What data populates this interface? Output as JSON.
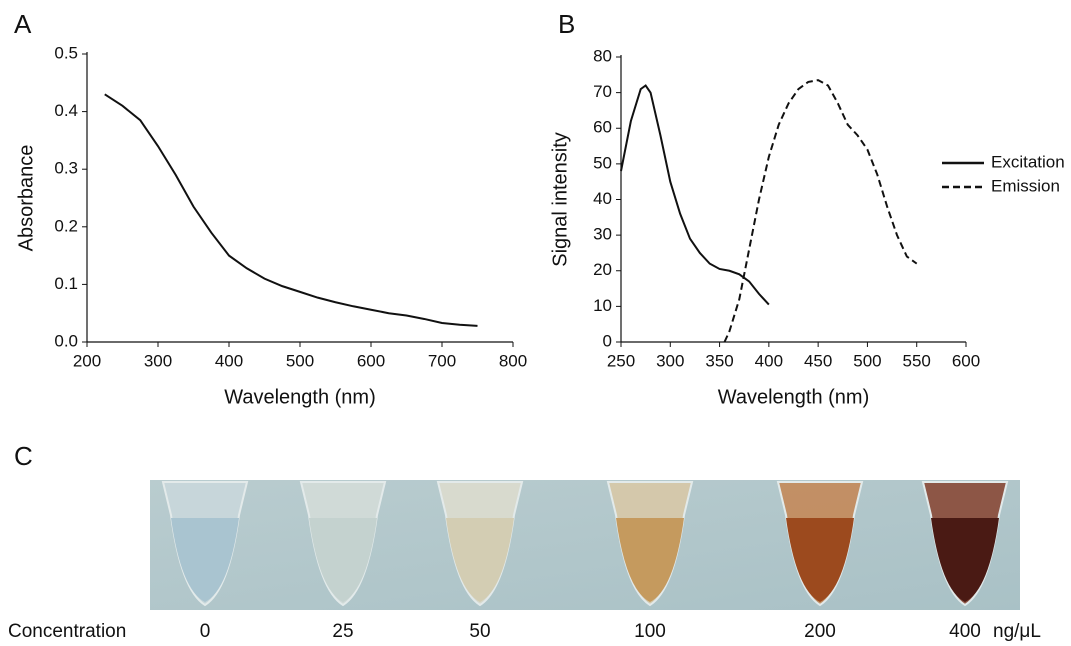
{
  "chart_data": [
    {
      "type": "line",
      "panel_label": "A",
      "xlabel": "Wavelength (nm)",
      "ylabel": "Absorbance",
      "color": "#111111",
      "x": [
        225,
        250,
        275,
        300,
        325,
        350,
        375,
        400,
        425,
        450,
        475,
        500,
        525,
        550,
        575,
        600,
        625,
        650,
        675,
        700,
        725,
        750
      ],
      "values": [
        0.43,
        0.41,
        0.385,
        0.34,
        0.29,
        0.235,
        0.19,
        0.15,
        0.128,
        0.11,
        0.097,
        0.087,
        0.077,
        0.069,
        0.062,
        0.056,
        0.05,
        0.046,
        0.04,
        0.033,
        0.03,
        0.028
      ],
      "xlim": [
        200,
        800
      ],
      "xticks": [
        200,
        300,
        400,
        500,
        600,
        700,
        800
      ],
      "ylim": [
        0,
        0.5
      ],
      "yticks": [
        {
          "value": 0,
          "label": "0.0"
        },
        0.1,
        0.2,
        0.3,
        0.4,
        0.5
      ]
    },
    {
      "type": "line",
      "panel_label": "B",
      "xlabel": "Wavelength (nm)",
      "ylabel": "Signal intensity",
      "legend": "right",
      "series": [
        {
          "name": "Excitation",
          "color": "#111111",
          "line_style": "solid",
          "x": [
            250,
            260,
            270,
            275,
            280,
            290,
            300,
            310,
            320,
            330,
            340,
            350,
            360,
            370,
            380,
            390,
            400
          ],
          "values": [
            48,
            62,
            71,
            72,
            70,
            58,
            45,
            36,
            29,
            25,
            22,
            20.5,
            20,
            19,
            17,
            13.5,
            10.5
          ]
        },
        {
          "name": "Emission",
          "color": "#111111",
          "line_style": "dashed",
          "x": [
            355,
            360,
            370,
            380,
            390,
            400,
            410,
            420,
            430,
            440,
            450,
            460,
            470,
            480,
            490,
            500,
            510,
            520,
            530,
            540,
            550
          ],
          "values": [
            0,
            3,
            12,
            26,
            40,
            52,
            61,
            67,
            71,
            73,
            73.5,
            72,
            67,
            61,
            58,
            54,
            47,
            38,
            30,
            24,
            22
          ]
        }
      ],
      "xlim": [
        250,
        600
      ],
      "xticks": [
        250,
        300,
        350,
        400,
        450,
        500,
        550,
        600
      ],
      "ylim": [
        0,
        80
      ],
      "yticks": [
        0,
        10,
        20,
        30,
        40,
        50,
        60,
        70,
        80
      ]
    }
  ],
  "panel_c": {
    "panel_label": "C",
    "row_label": "Concentration",
    "concentrations": [
      "0",
      "25",
      "50",
      "100",
      "200",
      "400"
    ],
    "unit": "ng/μL"
  }
}
